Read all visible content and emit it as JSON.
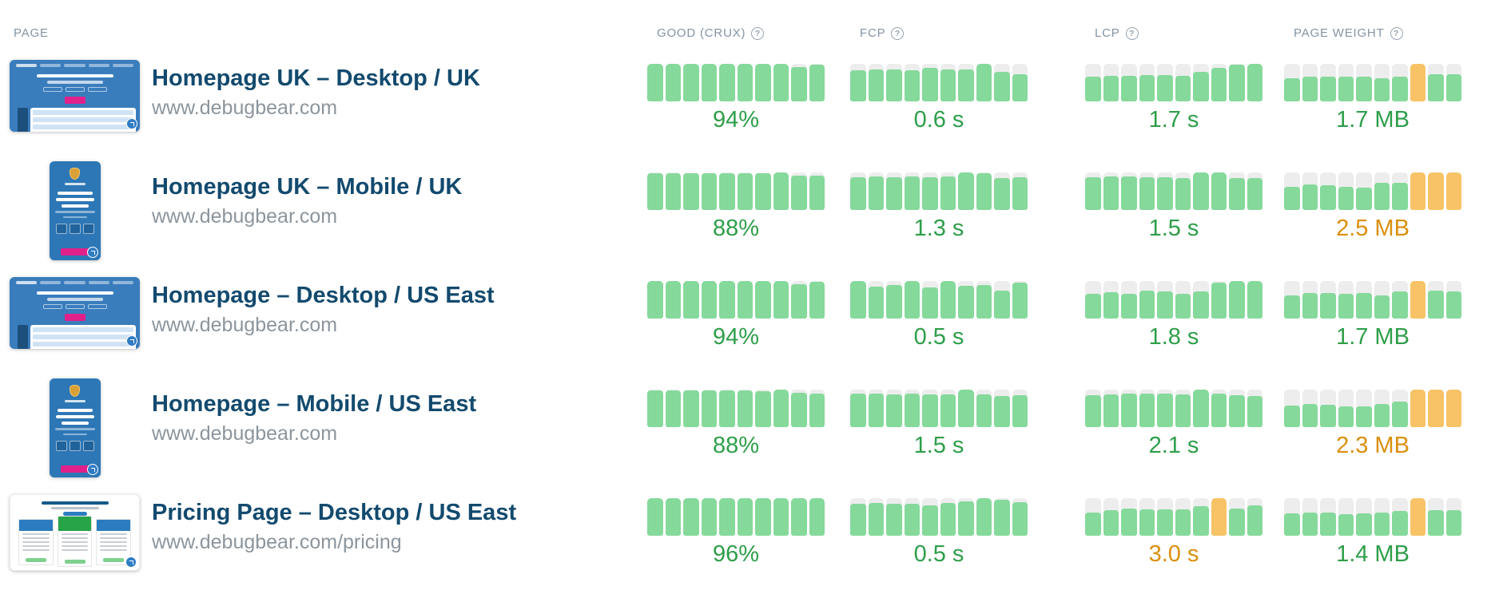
{
  "columns": {
    "page_label": "PAGE",
    "metrics": [
      {
        "id": "good",
        "label": "GOOD (CRUX)"
      },
      {
        "id": "fcp",
        "label": "FCP"
      },
      {
        "id": "lcp",
        "label": "LCP"
      },
      {
        "id": "weight",
        "label": "PAGE WEIGHT"
      }
    ],
    "help_icon": "?"
  },
  "colors": {
    "bar_good": "#85d99b",
    "bar_warn": "#f7c366",
    "bar_track": "#ededed",
    "value_good_text": "#2e9e49",
    "value_warn_text": "#db8f0d",
    "title_text": "#134a6e",
    "url_text": "#8c959d",
    "header_text": "#8494a3",
    "thumbnail_blue": "#3a7dbd",
    "thumbnail_pink": "#e0218a",
    "pricing_green": "#27a348"
  },
  "rows": [
    {
      "title": "Homepage UK – Desktop / UK",
      "url": "www.debugbear.com",
      "thumbnail": "desktop-home",
      "metrics": {
        "good": {
          "value": "94%",
          "status": "good",
          "heights": [
            100,
            100,
            100,
            100,
            100,
            100,
            100,
            100,
            92,
            97
          ],
          "orange": []
        },
        "fcp": {
          "value": "0.6 s",
          "status": "good",
          "heights": [
            82,
            85,
            85,
            82,
            90,
            85,
            85,
            100,
            78,
            72
          ],
          "orange": []
        },
        "lcp": {
          "value": "1.7 s",
          "status": "good",
          "heights": [
            65,
            68,
            68,
            70,
            70,
            68,
            78,
            90,
            97,
            100
          ],
          "orange": []
        },
        "weight": {
          "value": "1.7 MB",
          "status": "good",
          "heights": [
            62,
            65,
            65,
            65,
            65,
            62,
            65,
            100,
            72,
            72
          ],
          "orange": [
            7
          ]
        }
      }
    },
    {
      "title": "Homepage UK – Mobile / UK",
      "url": "www.debugbear.com",
      "thumbnail": "mobile-home",
      "metrics": {
        "good": {
          "value": "88%",
          "status": "good",
          "heights": [
            97,
            97,
            97,
            97,
            97,
            97,
            97,
            100,
            92,
            92
          ],
          "orange": []
        },
        "fcp": {
          "value": "1.3 s",
          "status": "good",
          "heights": [
            88,
            90,
            88,
            90,
            88,
            90,
            100,
            97,
            85,
            88
          ],
          "orange": []
        },
        "lcp": {
          "value": "1.5 s",
          "status": "good",
          "heights": [
            88,
            90,
            90,
            88,
            88,
            85,
            100,
            100,
            85,
            85
          ],
          "orange": []
        },
        "weight": {
          "value": "2.5 MB",
          "status": "warn",
          "heights": [
            62,
            68,
            65,
            62,
            60,
            72,
            72,
            100,
            100,
            100
          ],
          "orange": [
            7,
            8,
            9
          ]
        }
      }
    },
    {
      "title": "Homepage – Desktop / US East",
      "url": "www.debugbear.com",
      "thumbnail": "desktop-home",
      "metrics": {
        "good": {
          "value": "94%",
          "status": "good",
          "heights": [
            100,
            100,
            100,
            100,
            100,
            100,
            100,
            100,
            92,
            97
          ],
          "orange": []
        },
        "fcp": {
          "value": "0.5 s",
          "status": "good",
          "heights": [
            100,
            85,
            90,
            100,
            82,
            100,
            88,
            90,
            75,
            95
          ],
          "orange": []
        },
        "lcp": {
          "value": "1.8 s",
          "status": "good",
          "heights": [
            65,
            70,
            65,
            75,
            72,
            65,
            72,
            95,
            100,
            100
          ],
          "orange": []
        },
        "weight": {
          "value": "1.7 MB",
          "status": "good",
          "heights": [
            62,
            68,
            68,
            65,
            68,
            62,
            72,
            100,
            75,
            72
          ],
          "orange": [
            7
          ]
        }
      }
    },
    {
      "title": "Homepage – Mobile / US East",
      "url": "www.debugbear.com",
      "thumbnail": "mobile-home",
      "metrics": {
        "good": {
          "value": "88%",
          "status": "good",
          "heights": [
            97,
            97,
            97,
            97,
            97,
            97,
            95,
            100,
            92,
            90
          ],
          "orange": []
        },
        "fcp": {
          "value": "1.5 s",
          "status": "good",
          "heights": [
            90,
            90,
            88,
            90,
            88,
            88,
            100,
            88,
            82,
            85
          ],
          "orange": []
        },
        "lcp": {
          "value": "2.1 s",
          "status": "good",
          "heights": [
            85,
            88,
            90,
            90,
            90,
            88,
            100,
            90,
            85,
            82
          ],
          "orange": []
        },
        "weight": {
          "value": "2.3 MB",
          "status": "warn",
          "heights": [
            58,
            62,
            60,
            55,
            55,
            62,
            68,
            100,
            100,
            100
          ],
          "orange": [
            7,
            8,
            9
          ]
        }
      }
    },
    {
      "title": "Pricing Page – Desktop / US East",
      "url": "www.debugbear.com/pricing",
      "thumbnail": "pricing",
      "metrics": {
        "good": {
          "value": "96%",
          "status": "good",
          "heights": [
            100,
            100,
            100,
            100,
            100,
            100,
            100,
            100,
            100,
            100
          ],
          "orange": []
        },
        "fcp": {
          "value": "0.5 s",
          "status": "good",
          "heights": [
            85,
            88,
            85,
            85,
            80,
            88,
            92,
            100,
            95,
            90
          ],
          "orange": []
        },
        "lcp": {
          "value": "3.0 s",
          "status": "warn",
          "heights": [
            62,
            68,
            72,
            70,
            70,
            70,
            78,
            100,
            72,
            80
          ],
          "orange": [
            7
          ]
        },
        "weight": {
          "value": "1.4 MB",
          "status": "good",
          "heights": [
            60,
            62,
            62,
            58,
            60,
            62,
            65,
            100,
            68,
            68
          ],
          "orange": [
            7
          ]
        }
      }
    }
  ]
}
